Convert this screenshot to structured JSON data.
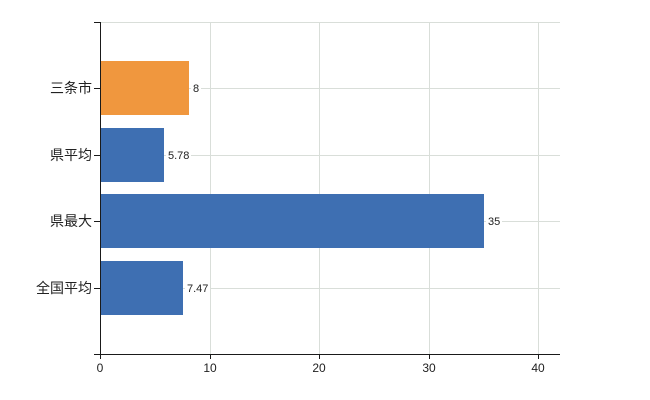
{
  "chart": {
    "background_color": "#ffffff",
    "axis_color": "#1a1a1a",
    "grid_color": "#d9ded9",
    "text_color": "#222222",
    "orange": "#f0973e",
    "blue": "#3e6fb2"
  },
  "chart_data": {
    "type": "bar",
    "orientation": "horizontal",
    "title": "",
    "xlabel": "",
    "ylabel": "",
    "categories": [
      "三条市",
      "県平均",
      "県最大",
      "全国平均"
    ],
    "values": [
      8,
      5.78,
      35,
      7.47
    ],
    "data_labels": [
      "8",
      "5.78",
      "35",
      "7.47"
    ],
    "bar_colors": [
      "#f0973e",
      "#3e6fb2",
      "#3e6fb2",
      "#3e6fb2"
    ],
    "x_tick_values": [
      0,
      10,
      20,
      30,
      40
    ],
    "x_tick_labels": [
      "0",
      "10",
      "20",
      "30",
      "40"
    ],
    "xlim": [
      0,
      42
    ],
    "grid": "on",
    "legend_position": "none"
  }
}
